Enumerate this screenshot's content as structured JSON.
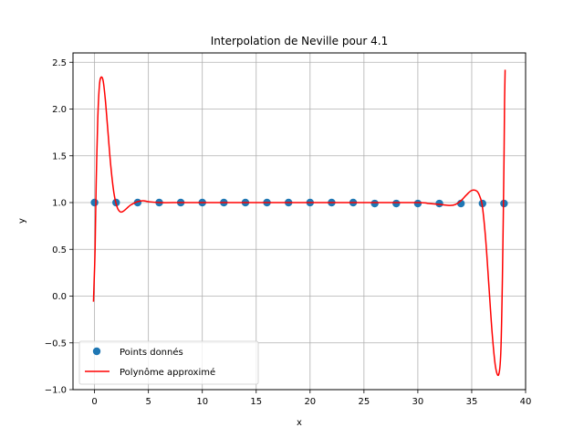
{
  "chart_data": {
    "type": "scatter",
    "title": "Interpolation de Neville pour 4.1",
    "xlabel": "x",
    "ylabel": "y",
    "xlim": [
      -2,
      40
    ],
    "ylim": [
      -1.0,
      2.6
    ],
    "xticks": [
      0,
      5,
      10,
      15,
      20,
      25,
      30,
      35,
      40
    ],
    "yticks": [
      -1.0,
      -0.5,
      0.0,
      0.5,
      1.0,
      1.5,
      2.0,
      2.5
    ],
    "grid": true,
    "legend_position": "lower-left",
    "series": [
      {
        "name": "Points donnés",
        "kind": "scatter",
        "color": "#1f77b4",
        "x": [
          0,
          2,
          4,
          6,
          8,
          10,
          12,
          14,
          16,
          18,
          20,
          22,
          24,
          26,
          28,
          30,
          32,
          34,
          36,
          38
        ],
        "y": [
          1.0,
          1.0,
          1.0,
          1.0,
          1.0,
          1.0,
          1.0,
          1.0,
          1.0,
          1.0,
          1.0,
          1.0,
          1.0,
          0.99,
          0.99,
          0.99,
          0.99,
          0.99,
          0.99,
          0.99
        ]
      },
      {
        "name": "Polynôme approximé",
        "kind": "line",
        "color": "#ff0000",
        "x": [
          -0.1,
          0.05,
          0.15,
          0.3,
          0.45,
          0.6,
          0.8,
          1.0,
          1.2,
          1.5,
          1.8,
          2.1,
          2.4,
          2.7,
          3.0,
          3.3,
          3.6,
          4.0,
          4.5,
          5.0,
          6.0,
          8.0,
          10.0,
          15.0,
          20.0,
          25.0,
          30.0,
          31.0,
          32.0,
          33.0,
          33.5,
          34.0,
          34.5,
          35.0,
          35.5,
          35.8,
          36.0,
          36.3,
          36.6,
          36.9,
          37.2,
          37.5,
          37.7,
          37.85,
          38.0,
          38.05,
          38.1
        ],
        "y": [
          -0.06,
          0.5,
          1.2,
          1.9,
          2.25,
          2.34,
          2.3,
          2.1,
          1.82,
          1.4,
          1.1,
          0.95,
          0.9,
          0.91,
          0.94,
          0.97,
          0.99,
          1.01,
          1.02,
          1.01,
          1.0,
          1.0,
          1.0,
          1.0,
          1.0,
          1.0,
          1.0,
          0.99,
          0.98,
          0.97,
          0.98,
          1.02,
          1.08,
          1.13,
          1.12,
          1.05,
          0.95,
          0.6,
          0.1,
          -0.4,
          -0.75,
          -0.84,
          -0.6,
          0.2,
          1.5,
          2.1,
          2.42
        ]
      }
    ]
  }
}
